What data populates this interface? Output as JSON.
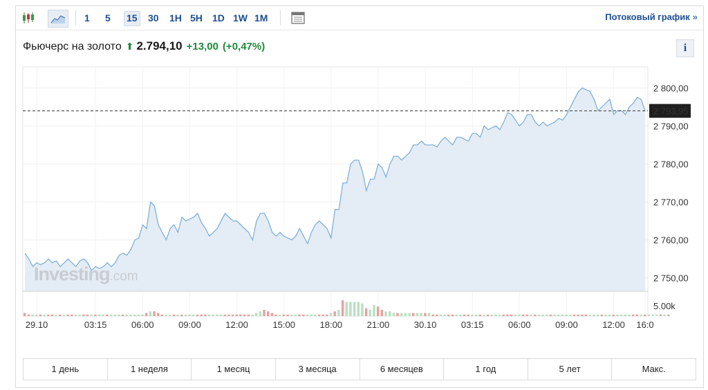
{
  "toolbar": {
    "timeframes": [
      "1",
      "5",
      "15",
      "30",
      "1H",
      "5H",
      "1D",
      "1W",
      "1M"
    ],
    "active_timeframe": "15",
    "stream_link": "Потоковый график",
    "stream_link_arrow": "»"
  },
  "quote": {
    "name": "Фьючерс на золото",
    "arrow": "⬆",
    "price": "2.794,10",
    "change": "+13,00",
    "change_pct": "(+0,47%)",
    "info_label": "i"
  },
  "watermark": {
    "brand": "Investing",
    "suffix": ".com"
  },
  "ranges": [
    "1 день",
    "1 неделя",
    "1 месяц",
    "3 месяца",
    "6 месяцев",
    "1 год",
    "5 лет",
    "Макс."
  ],
  "colors": {
    "line": "#7fb0dc",
    "area": "#e4edf5",
    "up": "#1f8a3a",
    "link": "#1d4f91",
    "vol_up": "#b9e0c0",
    "vol_down": "#e9a0a0"
  },
  "chart_data": {
    "type": "area",
    "y_ticks": [
      "2 800,00",
      "2 790,00",
      "2 780,00",
      "2 770,00",
      "2 760,00",
      "2 750,00"
    ],
    "y_tick_values": [
      2800,
      2790,
      2780,
      2770,
      2760,
      2750
    ],
    "ylim": [
      2746.5,
      2805.5
    ],
    "last_value_label": "2 793,95",
    "last_value": 2793.95,
    "volume_label": "5.00k",
    "x_ticks": [
      "29.10",
      "03:15",
      "06:00",
      "09:00",
      "12:00",
      "15:00",
      "18:00",
      "21:00",
      "30.10",
      "03:15",
      "06:00",
      "09:00",
      "12:00",
      "16:0"
    ],
    "x_tick_index": [
      3,
      18,
      30,
      42,
      54,
      66,
      78,
      90,
      102,
      114,
      126,
      138,
      150,
      165
    ],
    "prices": [
      2756.5,
      2755,
      2753,
      2754,
      2753.5,
      2754,
      2755,
      2754,
      2754.5,
      2753,
      2754,
      2755,
      2754,
      2753,
      2754.5,
      2755,
      2754,
      2752,
      2753,
      2752.5,
      2753,
      2754,
      2753,
      2754,
      2756,
      2756.5,
      2756,
      2757.5,
      2760,
      2760.5,
      2764,
      2763,
      2770,
      2769,
      2764,
      2762,
      2760,
      2763,
      2764,
      2762,
      2766,
      2765,
      2765.5,
      2766,
      2767,
      2764.5,
      2763,
      2761,
      2762,
      2763,
      2765,
      2767,
      2766,
      2765,
      2765,
      2764,
      2763,
      2762,
      2760,
      2765,
      2767,
      2767,
      2765,
      2762,
      2761,
      2762,
      2761,
      2760.5,
      2760,
      2761,
      2763,
      2761,
      2759,
      2762,
      2764,
      2765,
      2764,
      2763,
      2760.5,
      2768,
      2768,
      2775,
      2775,
      2780,
      2781,
      2781,
      2778,
      2773,
      2776,
      2776,
      2780,
      2779,
      2776.5,
      2780,
      2782,
      2782,
      2781,
      2782,
      2783,
      2785,
      2785,
      2786,
      2785,
      2785,
      2785,
      2784.5,
      2786,
      2787,
      2786,
      2785,
      2787,
      2787,
      2786.5,
      2786,
      2788,
      2788,
      2787,
      2790,
      2789,
      2789.5,
      2790,
      2789,
      2791,
      2793.5,
      2793,
      2791.5,
      2790,
      2791,
      2793,
      2793,
      2791,
      2790,
      2791,
      2790,
      2790.5,
      2791,
      2792,
      2791.5,
      2793,
      2795,
      2797,
      2799,
      2800,
      2799.5,
      2799,
      2797,
      2794,
      2795,
      2796,
      2797,
      2793,
      2794,
      2794,
      2793,
      2795,
      2796,
      2797.5,
      2797,
      2793.95
    ],
    "volumes": [
      2,
      1,
      1,
      1,
      1,
      1,
      1,
      1,
      1,
      1,
      1,
      1,
      1,
      1,
      1,
      1,
      1,
      1,
      1,
      1,
      1,
      1,
      1,
      1,
      1,
      1,
      1,
      1,
      1,
      1,
      1,
      2,
      3,
      3,
      2,
      1,
      1,
      1,
      1,
      1,
      1,
      1,
      1,
      1,
      1,
      1,
      1,
      1,
      1,
      1,
      1,
      1,
      1,
      1,
      1,
      1,
      1,
      1,
      1,
      2,
      3,
      4,
      3,
      2,
      1,
      1,
      1,
      1,
      1,
      1,
      1,
      1,
      1,
      1,
      1,
      1,
      1,
      1,
      2,
      3,
      4,
      10,
      9,
      9,
      9,
      9,
      8,
      5,
      4,
      7,
      6,
      4,
      3,
      3,
      2,
      2,
      2,
      2,
      2,
      2,
      2,
      2,
      2,
      2,
      1,
      1,
      1,
      1,
      1,
      1,
      1,
      1,
      1,
      1,
      1,
      1,
      1,
      1,
      1,
      1,
      1,
      1,
      1,
      1,
      1,
      1,
      1,
      1,
      1,
      1,
      1,
      1,
      1,
      1,
      1,
      1,
      1,
      1,
      1,
      1,
      1,
      1,
      1,
      1,
      1,
      1,
      1,
      1,
      1,
      1,
      1,
      1,
      1,
      1,
      1,
      1,
      1,
      1,
      1,
      1,
      1,
      1,
      1,
      1,
      1
    ],
    "volume_up": [
      0,
      0,
      1,
      1,
      0,
      1,
      0,
      0,
      1,
      0,
      1,
      0,
      0,
      1,
      1,
      0,
      0,
      1,
      0,
      1,
      1,
      0,
      1,
      1,
      1,
      0,
      1,
      1,
      1,
      1,
      1,
      0,
      1,
      0,
      0,
      0,
      1,
      1,
      0,
      1,
      0,
      1,
      1,
      1,
      0,
      0,
      0,
      1,
      1,
      1,
      1,
      0,
      0,
      0,
      0,
      0,
      0,
      0,
      1,
      1,
      1,
      0,
      0,
      0,
      0,
      1,
      0,
      0,
      1,
      1,
      0,
      0,
      1,
      1,
      1,
      0,
      0,
      0,
      1,
      0,
      1,
      0,
      1,
      1,
      1,
      1,
      1,
      0,
      1,
      1,
      0,
      0,
      1,
      1,
      1,
      0,
      1,
      1,
      1,
      0,
      1,
      1,
      0,
      1,
      0,
      0,
      1,
      1,
      0,
      0,
      1,
      1,
      0,
      0,
      1,
      1,
      0,
      1,
      0,
      1,
      1,
      1,
      0,
      0,
      0,
      1,
      1,
      0,
      0,
      1,
      0,
      1,
      1,
      1,
      0,
      1,
      1,
      1,
      1,
      1,
      0,
      0,
      0,
      0,
      1,
      1,
      1,
      0,
      1,
      1,
      0,
      1,
      1,
      1,
      1,
      0,
      0,
      1,
      0,
      1,
      1,
      1,
      0,
      1,
      0,
      0,
      1,
      1
    ],
    "grid": true
  }
}
